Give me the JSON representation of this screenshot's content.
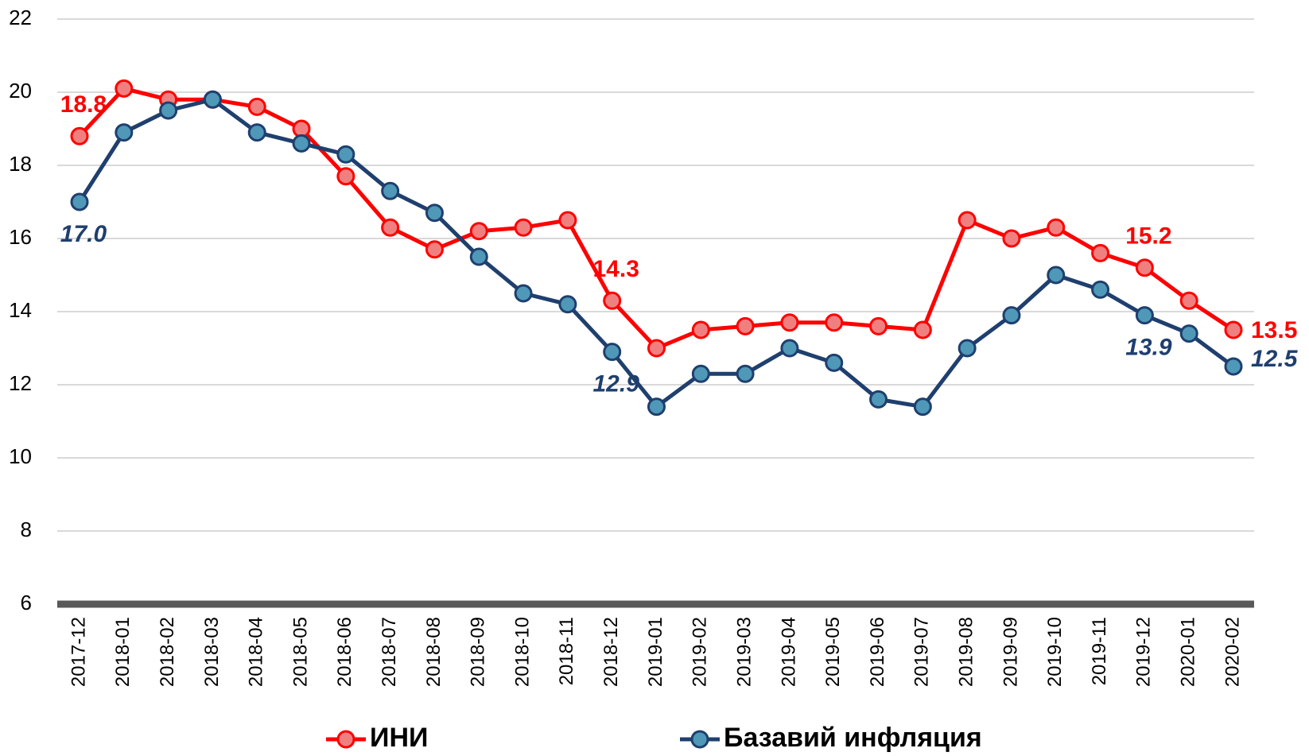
{
  "chart_data": {
    "type": "line",
    "categories": [
      "2017-12",
      "2018-01",
      "2018-02",
      "2018-03",
      "2018-04",
      "2018-05",
      "2018-06",
      "2018-07",
      "2018-08",
      "2018-09",
      "2018-10",
      "2018-11",
      "2018-12",
      "2019-01",
      "2019-02",
      "2019-03",
      "2019-04",
      "2019-05",
      "2019-06",
      "2019-07",
      "2019-08",
      "2019-09",
      "2019-10",
      "2019-11",
      "2019-12",
      "2020-01",
      "2020-02"
    ],
    "series": [
      {
        "name": "ИНИ",
        "color": "#ff0000",
        "values": [
          18.8,
          20.1,
          19.8,
          19.8,
          19.6,
          19.0,
          17.7,
          16.3,
          15.7,
          16.2,
          16.3,
          16.5,
          14.3,
          13.0,
          13.5,
          13.6,
          13.7,
          13.7,
          13.6,
          13.5,
          16.5,
          16.0,
          16.3,
          15.6,
          15.2,
          14.3,
          13.5
        ],
        "value_labels": [
          "18.8",
          null,
          null,
          null,
          null,
          null,
          null,
          null,
          null,
          null,
          null,
          null,
          "14.3",
          null,
          null,
          null,
          null,
          null,
          null,
          null,
          null,
          null,
          null,
          null,
          "15.2",
          null,
          "13.5"
        ]
      },
      {
        "name": "Базавий инфляция",
        "color": "#1f3f6e",
        "values": [
          17.0,
          18.9,
          19.5,
          19.8,
          18.9,
          18.6,
          18.3,
          17.3,
          16.7,
          15.5,
          14.5,
          14.2,
          12.9,
          11.4,
          12.3,
          12.3,
          13.0,
          12.6,
          11.6,
          11.4,
          13.0,
          13.9,
          15.0,
          14.6,
          13.9,
          13.4,
          12.5
        ],
        "value_labels": [
          "17.0",
          null,
          null,
          null,
          null,
          null,
          null,
          null,
          null,
          null,
          null,
          null,
          "12.9",
          null,
          null,
          null,
          null,
          null,
          null,
          null,
          null,
          null,
          null,
          null,
          "13.9",
          null,
          "12.5"
        ]
      }
    ],
    "ylim": [
      6,
      22
    ],
    "yticks": [
      6,
      8,
      10,
      12,
      14,
      16,
      18,
      20,
      22
    ],
    "grid": true,
    "legend": "bottom"
  }
}
